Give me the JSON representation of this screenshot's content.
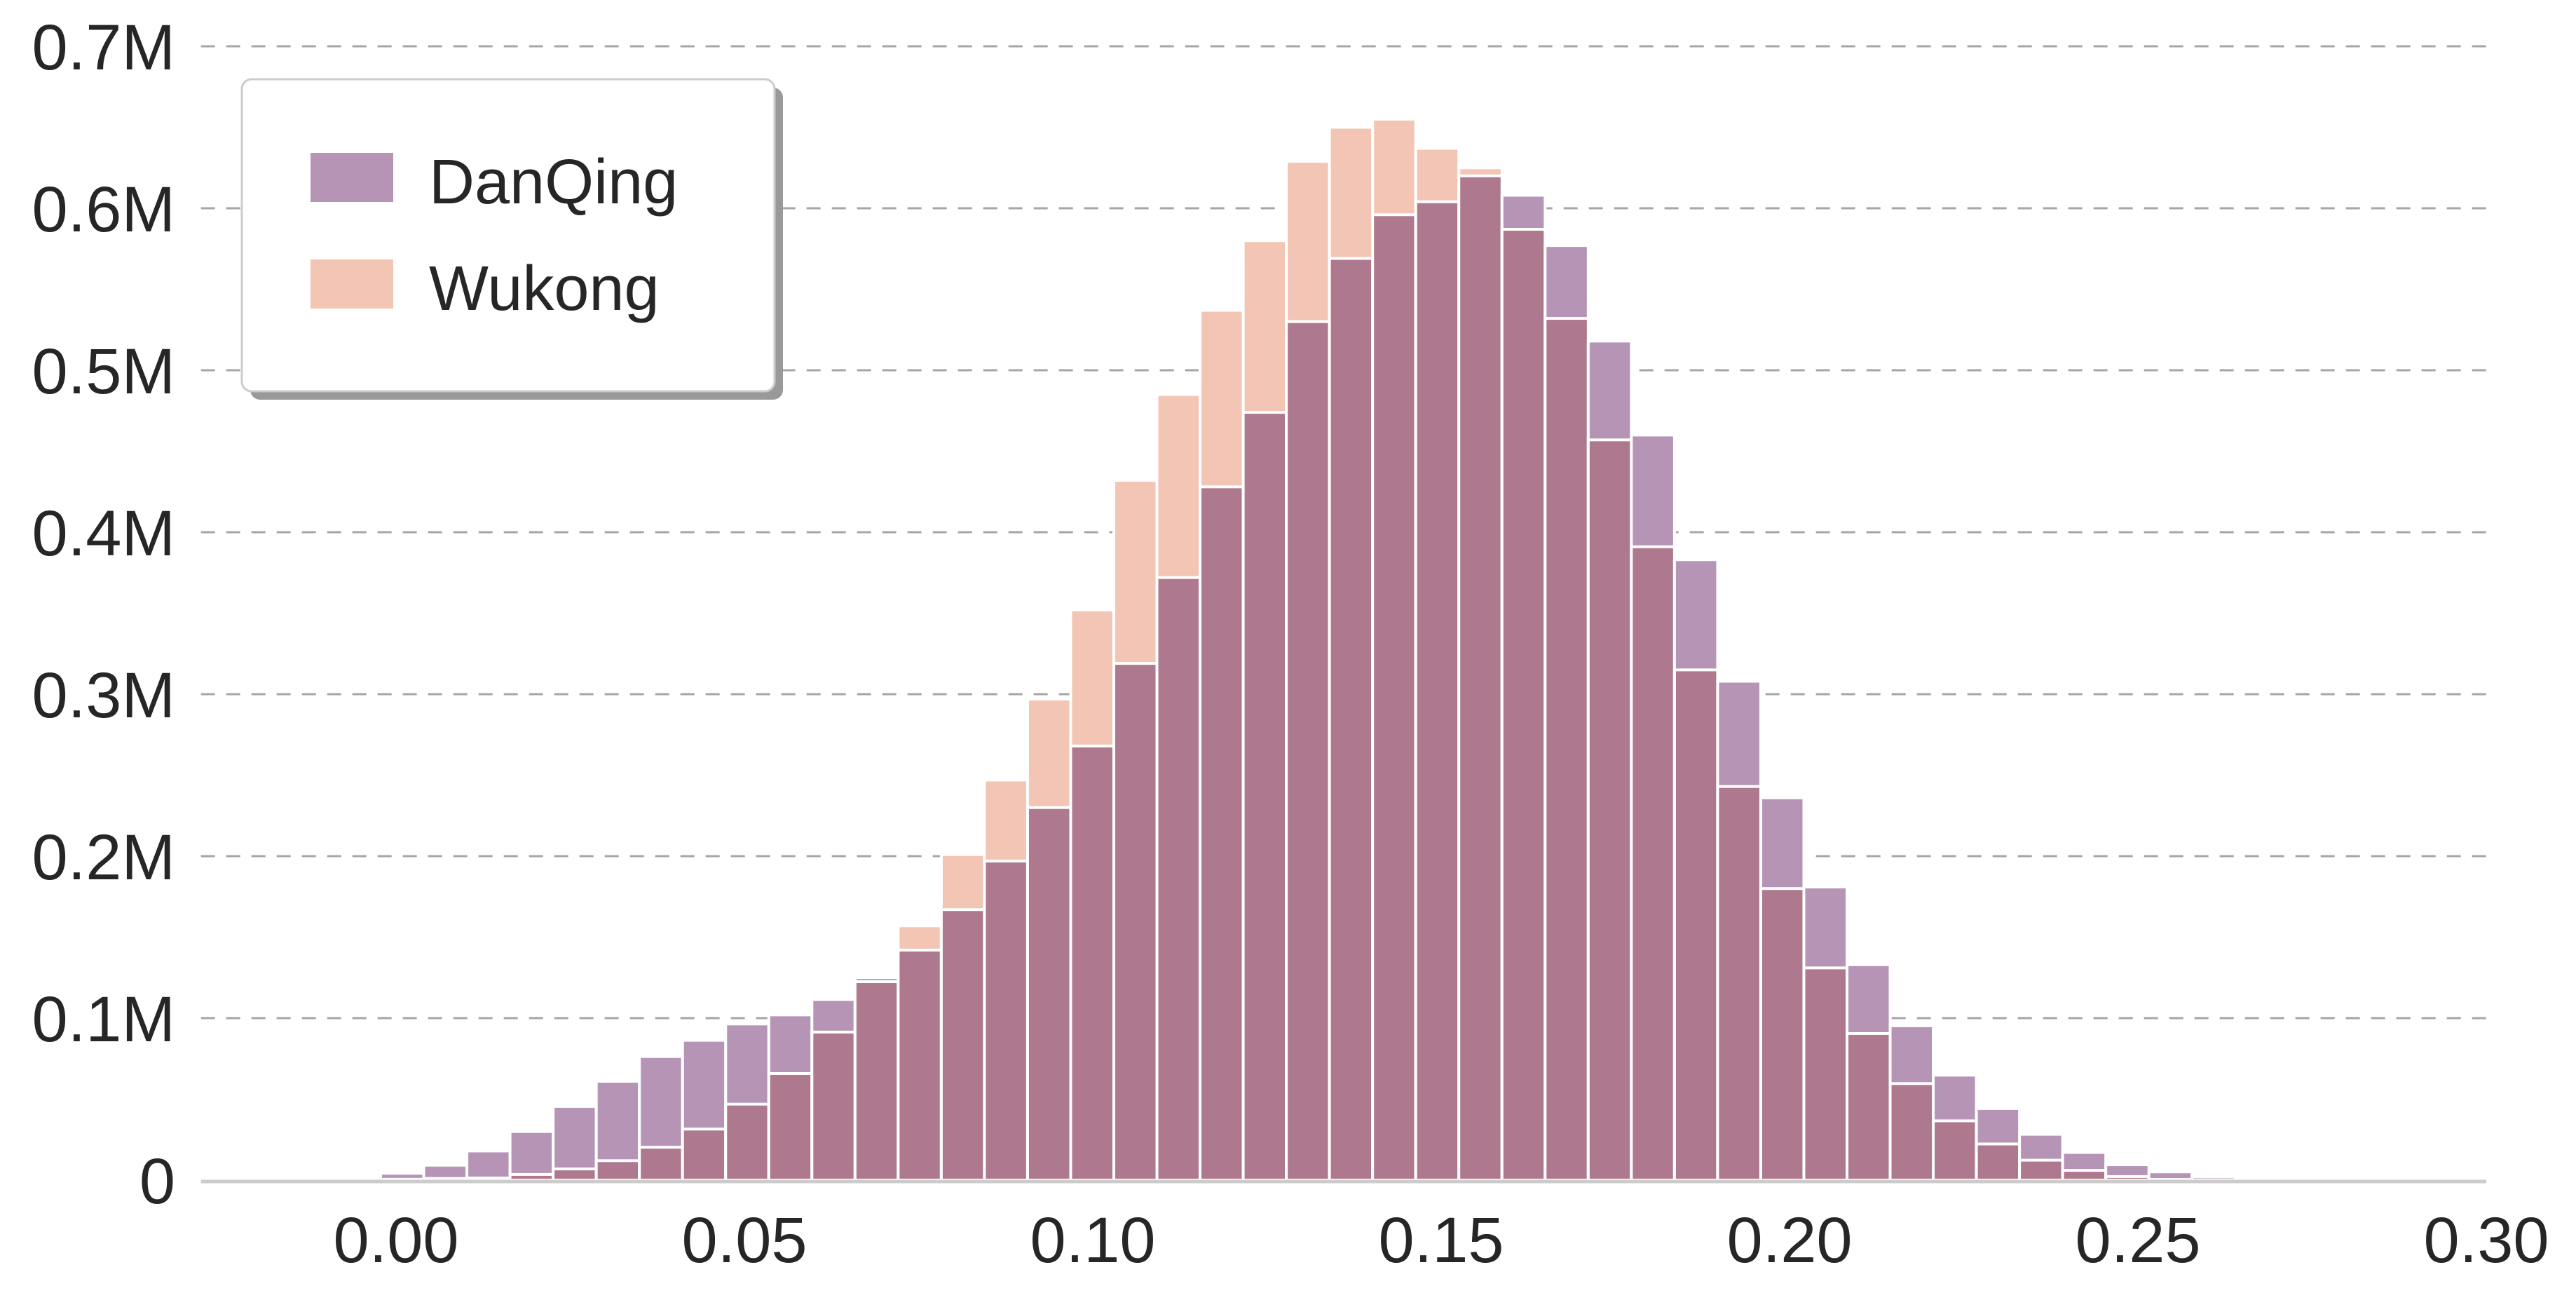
{
  "chart_data": {
    "type": "bar",
    "subtype": "overlapping-histogram",
    "title": "",
    "xlabel": "",
    "ylabel": "",
    "xlim": [
      -0.028,
      0.3
    ],
    "ylim": [
      0,
      0.7
    ],
    "x_ticks": [
      0.0,
      0.05,
      0.1,
      0.15,
      0.2,
      0.25,
      0.3
    ],
    "x_tick_labels": [
      "0.00",
      "0.05",
      "0.10",
      "0.15",
      "0.20",
      "0.25",
      "0.30"
    ],
    "y_ticks": [
      0,
      0.1,
      0.2,
      0.3,
      0.4,
      0.5,
      0.6,
      0.7
    ],
    "y_tick_labels": [
      "0",
      "0.1M",
      "0.2M",
      "0.3M",
      "0.4M",
      "0.5M",
      "0.6M",
      "0.7M"
    ],
    "y_unit": "millions",
    "grid": "horizontal dashed",
    "legend_position": "top-left",
    "bin_start": -0.0084,
    "bin_width": 0.00619,
    "series": [
      {
        "name": "DanQing",
        "color": "#b594b5",
        "values": [
          0.001,
          0.0042,
          0.0092,
          0.018,
          0.03,
          0.0455,
          0.061,
          0.0763,
          0.0863,
          0.0964,
          0.102,
          0.1115,
          0.125,
          0.142,
          0.167,
          0.197,
          0.23,
          0.268,
          0.319,
          0.372,
          0.428,
          0.474,
          0.53,
          0.569,
          0.596,
          0.604,
          0.62,
          0.608,
          0.577,
          0.518,
          0.46,
          0.383,
          0.308,
          0.236,
          0.181,
          0.133,
          0.0953,
          0.0648,
          0.0442,
          0.0283,
          0.0171,
          0.0095,
          0.0051,
          0.002,
          0.0004
        ]
      },
      {
        "name": "Wukong",
        "color": "#f3c5b4",
        "values": [
          0,
          0.0005,
          0.001,
          0.0013,
          0.0035,
          0.0069,
          0.012,
          0.0203,
          0.0315,
          0.0469,
          0.0658,
          0.0914,
          0.1225,
          0.157,
          0.201,
          0.247,
          0.297,
          0.352,
          0.432,
          0.485,
          0.537,
          0.58,
          0.629,
          0.65,
          0.655,
          0.637,
          0.625,
          0.587,
          0.532,
          0.457,
          0.391,
          0.315,
          0.243,
          0.18,
          0.131,
          0.0905,
          0.0596,
          0.0366,
          0.0223,
          0.0123,
          0.006,
          0.0022,
          0.0004,
          0,
          0
        ]
      }
    ],
    "overlap_color": "#ae788e"
  }
}
